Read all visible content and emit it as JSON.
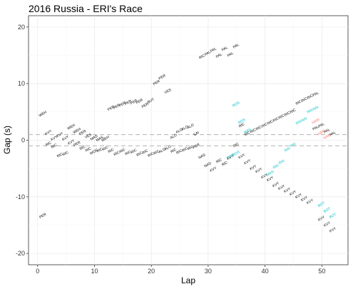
{
  "chart_data": {
    "type": "scatter",
    "title": "2016 Russia - ERI's Race",
    "xlabel": "Lap",
    "ylabel": "Gap (s)",
    "xlim": [
      -1.6,
      54.6
    ],
    "ylim": [
      -22,
      22
    ],
    "xticks": [
      0,
      10,
      20,
      30,
      40,
      50
    ],
    "yticks": [
      -20,
      -10,
      0,
      10,
      20
    ],
    "grid": true,
    "legend": "none",
    "reference_lines": [
      1,
      -1
    ],
    "colors": {
      "default": "#000000",
      "highlight_cyan": "#00BFC4",
      "highlight_red": "#F8766D",
      "reference_line": "#bbbbbb",
      "grid": "#ebebeb",
      "panel_border": "#333333"
    },
    "series": [
      {
        "name": "",
        "color": "default",
        "points": [
          {
            "x": 1,
            "y": 4.5,
            "label": "WEH"
          },
          {
            "x": 1,
            "y": -13.5,
            "label": "PER"
          },
          {
            "x": 2,
            "y": 1.2,
            "label": "KVY"
          },
          {
            "x": 2,
            "y": -0.8,
            "label": "RIC"
          },
          {
            "x": 3,
            "y": 0.2,
            "label": "KVY"
          },
          {
            "x": 3,
            "y": -1.2,
            "label": "RIC"
          },
          {
            "x": 4,
            "y": 0.8,
            "label": "KVY"
          },
          {
            "x": 4,
            "y": -2.8,
            "label": "RIC"
          },
          {
            "x": 5,
            "y": 0.2,
            "label": "KVY"
          },
          {
            "x": 5,
            "y": -2.5,
            "label": "RIC"
          },
          {
            "x": 6,
            "y": 2.2,
            "label": "WEH"
          },
          {
            "x": 6,
            "y": -0.5,
            "label": "KVY"
          },
          {
            "x": 7,
            "y": 1.5,
            "label": "WEH"
          },
          {
            "x": 7,
            "y": -0.8,
            "label": "PER"
          },
          {
            "x": 8,
            "y": 1.2,
            "label": "PER"
          },
          {
            "x": 8,
            "y": -1.5,
            "label": "RIC"
          },
          {
            "x": 9,
            "y": 0.6,
            "label": "VES"
          },
          {
            "x": 9,
            "y": -1.8,
            "label": "RIC"
          },
          {
            "x": 10,
            "y": 0.3,
            "label": "MAS"
          },
          {
            "x": 10,
            "y": -2.2,
            "label": "WOC"
          },
          {
            "x": 11,
            "y": 0.1,
            "label": "MAS"
          },
          {
            "x": 11,
            "y": -1.9,
            "label": "RIC"
          },
          {
            "x": 12,
            "y": 0.1,
            "label": "WEH"
          },
          {
            "x": 12,
            "y": -1.6,
            "label": "RIC"
          },
          {
            "x": 13,
            "y": 5.5,
            "label": "PER"
          },
          {
            "x": 13,
            "y": -2.0,
            "label": "RIC"
          },
          {
            "x": 14,
            "y": 5.8,
            "label": "PER"
          },
          {
            "x": 14,
            "y": -2.5,
            "label": "RIC"
          },
          {
            "x": 15,
            "y": 6.2,
            "label": "PER"
          },
          {
            "x": 15,
            "y": -2.0,
            "label": "RIC"
          },
          {
            "x": 16,
            "y": 6.5,
            "label": "PER"
          },
          {
            "x": 16,
            "y": -2.4,
            "label": "RIC"
          },
          {
            "x": 17,
            "y": 6.6,
            "label": "PER"
          },
          {
            "x": 17,
            "y": -2.1,
            "label": "RIC"
          },
          {
            "x": 18,
            "y": 6.7,
            "label": "PER"
          },
          {
            "x": 18,
            "y": -2.6,
            "label": "RIC"
          },
          {
            "x": 19,
            "y": 6.0,
            "label": "PER"
          },
          {
            "x": 19,
            "y": -2.2,
            "label": "RIC"
          },
          {
            "x": 20,
            "y": 6.8,
            "label": "BUT"
          },
          {
            "x": 20,
            "y": -2.7,
            "label": "RIC"
          },
          {
            "x": 21,
            "y": 10.0,
            "label": "PER"
          },
          {
            "x": 21,
            "y": -2.3,
            "label": "RIC"
          },
          {
            "x": 22,
            "y": 11.0,
            "label": "PER"
          },
          {
            "x": 22,
            "y": -2.0,
            "label": "ALO"
          },
          {
            "x": 23,
            "y": 8.5,
            "label": "VES"
          },
          {
            "x": 23,
            "y": -1.5,
            "label": "ALO"
          },
          {
            "x": 24,
            "y": 0.5,
            "label": "ALO"
          },
          {
            "x": 24,
            "y": -2.0,
            "label": "RIC"
          },
          {
            "x": 25,
            "y": 1.5,
            "label": "ALO"
          },
          {
            "x": 25,
            "y": -2.2,
            "label": "RIC"
          },
          {
            "x": 26,
            "y": 2.0,
            "label": "ALO"
          },
          {
            "x": 26,
            "y": -1.8,
            "label": "RIC"
          },
          {
            "x": 27,
            "y": 2.3,
            "label": "ALO"
          },
          {
            "x": 27,
            "y": -1.5,
            "label": "RIC"
          },
          {
            "x": 28,
            "y": 1.0,
            "label": "SAI"
          },
          {
            "x": 28,
            "y": -1.2,
            "label": "PER"
          },
          {
            "x": 29,
            "y": 14.6,
            "label": "RIC"
          },
          {
            "x": 29,
            "y": -3.0,
            "label": "NAS"
          },
          {
            "x": 30,
            "y": 15.2,
            "label": "PAL"
          },
          {
            "x": 30,
            "y": -4.5,
            "label": "NAS"
          },
          {
            "x": 31,
            "y": 15.8,
            "label": "PAL"
          },
          {
            "x": 31,
            "y": -5.3,
            "label": "KVY"
          },
          {
            "x": 32,
            "y": 14.8,
            "label": "PAL"
          },
          {
            "x": 32,
            "y": -3.8,
            "label": "RIC"
          },
          {
            "x": 33,
            "y": 16.0,
            "label": "PAL"
          },
          {
            "x": 33,
            "y": -4.3,
            "label": "RIC"
          },
          {
            "x": 34,
            "y": 15.0,
            "label": "PAL"
          },
          {
            "x": 34,
            "y": -3.2,
            "label": "KVY"
          },
          {
            "x": 35,
            "y": 16.5,
            "label": "PAL"
          },
          {
            "x": 35,
            "y": -1.0,
            "label": "RIC"
          },
          {
            "x": 36,
            "y": 2.5,
            "label": "RIC"
          },
          {
            "x": 36,
            "y": -3.0,
            "label": "KVY"
          },
          {
            "x": 37,
            "y": 1.0,
            "label": "RIC"
          },
          {
            "x": 37,
            "y": -4.0,
            "label": "KVY"
          },
          {
            "x": 38,
            "y": 1.5,
            "label": "RIC"
          },
          {
            "x": 38,
            "y": -5.0,
            "label": "KVY"
          },
          {
            "x": 39,
            "y": 2.0,
            "label": "RIC"
          },
          {
            "x": 39,
            "y": -5.5,
            "label": "KVY"
          },
          {
            "x": 40,
            "y": 2.5,
            "label": "RIC"
          },
          {
            "x": 40,
            "y": -6.5,
            "label": "KVY"
          },
          {
            "x": 41,
            "y": 3.0,
            "label": "RIC"
          },
          {
            "x": 41,
            "y": -7.0,
            "label": "KVY"
          },
          {
            "x": 42,
            "y": 3.5,
            "label": "RIC"
          },
          {
            "x": 42,
            "y": -8.0,
            "label": "KVY"
          },
          {
            "x": 43,
            "y": 4.0,
            "label": "RIC"
          },
          {
            "x": 43,
            "y": -8.5,
            "label": "KVY"
          },
          {
            "x": 44,
            "y": 4.5,
            "label": "RIC"
          },
          {
            "x": 44,
            "y": -9.0,
            "label": "KVY"
          },
          {
            "x": 45,
            "y": 5.0,
            "label": "RIC"
          },
          {
            "x": 45,
            "y": -9.5,
            "label": "KVY"
          },
          {
            "x": 46,
            "y": 6.5,
            "label": "RIC"
          },
          {
            "x": 46,
            "y": -10.0,
            "label": "KVY"
          },
          {
            "x": 47,
            "y": 7.0,
            "label": "RIC"
          },
          {
            "x": 47,
            "y": -10.5,
            "label": "KVY"
          },
          {
            "x": 48,
            "y": 7.5,
            "label": "RIC"
          },
          {
            "x": 48,
            "y": -11.0,
            "label": "KVY"
          },
          {
            "x": 49,
            "y": 8.0,
            "label": "PAL"
          },
          {
            "x": 49,
            "y": 2.0,
            "label": "PAL"
          },
          {
            "x": 50,
            "y": 2.5,
            "label": "PAL"
          },
          {
            "x": 50,
            "y": -14.0,
            "label": "KVY"
          },
          {
            "x": 51,
            "y": 1.5,
            "label": "PAL"
          },
          {
            "x": 51,
            "y": -15.0,
            "label": "KVY"
          },
          {
            "x": 52,
            "y": 1.0,
            "label": "PAL"
          },
          {
            "x": 52,
            "y": -16.0,
            "label": "KVY"
          }
        ]
      },
      {
        "name": "",
        "color": "highlight_cyan",
        "points": [
          {
            "x": 34,
            "y": -3.0,
            "label": "ROS"
          },
          {
            "x": 35,
            "y": -2.5,
            "label": "ROS"
          },
          {
            "x": 35,
            "y": 6.2,
            "label": "ROS"
          },
          {
            "x": 36,
            "y": 3.2,
            "label": "ROS"
          },
          {
            "x": 37,
            "y": 1.5,
            "label": "MAS"
          },
          {
            "x": 41,
            "y": -6.0,
            "label": "MAS"
          },
          {
            "x": 42,
            "y": -4.8,
            "label": "RAI"
          },
          {
            "x": 43,
            "y": -4.0,
            "label": "RAI"
          },
          {
            "x": 44,
            "y": -1.8,
            "label": "RAI"
          },
          {
            "x": 45,
            "y": -1.0,
            "label": "RAI"
          },
          {
            "x": 46,
            "y": 3.0,
            "label": "RAI"
          },
          {
            "x": 47,
            "y": 3.5,
            "label": "RAI"
          },
          {
            "x": 48,
            "y": 5.0,
            "label": "RAI"
          },
          {
            "x": 49,
            "y": 5.5,
            "label": "RAI"
          },
          {
            "x": 50,
            "y": -11.5,
            "label": "BOT"
          },
          {
            "x": 51,
            "y": -12.5,
            "label": "BOT"
          },
          {
            "x": 52,
            "y": -13.5,
            "label": "BOT"
          }
        ]
      },
      {
        "name": "",
        "color": "highlight_red",
        "points": [
          {
            "x": 49,
            "y": 3.2,
            "label": "HAM"
          },
          {
            "x": 50,
            "y": 1.2,
            "label": "HAM"
          },
          {
            "x": 51,
            "y": 0.5,
            "label": "HAM"
          }
        ]
      }
    ]
  }
}
